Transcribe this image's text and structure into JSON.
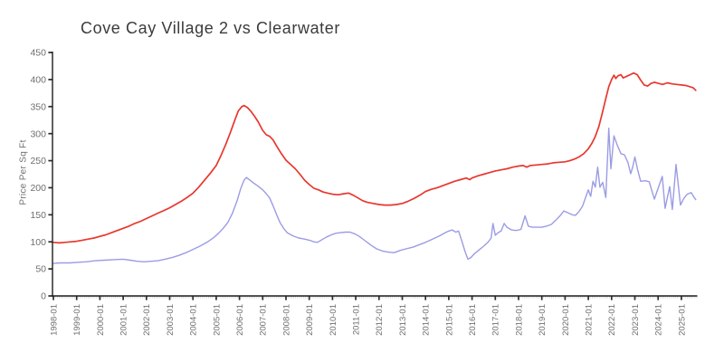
{
  "page": {
    "background": "#ffffff"
  },
  "chart_data": {
    "type": "line",
    "title": "Cove Cay Village 2 vs Clearwater",
    "xlabel": "",
    "ylabel": "Price Per Sq Ft",
    "ylim": [
      0,
      450
    ],
    "xlim": [
      1998.0,
      2025.67
    ],
    "grid": false,
    "legend_position": "none",
    "y_ticks": [
      0,
      50,
      100,
      150,
      200,
      250,
      300,
      350,
      400,
      450
    ],
    "x_tick_years": [
      1998,
      1999,
      2000,
      2001,
      2002,
      2003,
      2004,
      2005,
      2006,
      2007,
      2008,
      2009,
      2010,
      2011,
      2012,
      2013,
      2014,
      2015,
      2016,
      2017,
      2018,
      2019,
      2020,
      2021,
      2022,
      2023,
      2024,
      2025
    ],
    "x_tick_labels": [
      "1998-01",
      "1999-01",
      "2000-01",
      "2001-01",
      "2002-01",
      "2003-01",
      "2004-01",
      "2005-01",
      "2006-01",
      "2007-01",
      "2008-01",
      "2009-01",
      "2010-01",
      "2011-01",
      "2012-01",
      "2013-01",
      "2014-01",
      "2015-01",
      "2016-01",
      "2017-01",
      "2018-01",
      "2019-01",
      "2020-01",
      "2021-01",
      "2022-01",
      "2023-01",
      "2024-01",
      "2025-01"
    ],
    "colors": {
      "red_series": "#e8372e",
      "blue_series": "#9b9ce4",
      "axis": "#1c1c1c",
      "tick_label": "#6f6f6f",
      "minor_tick": "#c4c4c4",
      "title_text": "#3b3b3b"
    },
    "series": [
      {
        "id": "red",
        "name": "Clearwater",
        "color": "#e8372e",
        "points": [
          [
            1998.0,
            99
          ],
          [
            1998.25,
            98
          ],
          [
            1998.5,
            99
          ],
          [
            1998.75,
            100
          ],
          [
            1999.0,
            101
          ],
          [
            1999.25,
            103
          ],
          [
            1999.5,
            105
          ],
          [
            1999.75,
            107
          ],
          [
            2000.0,
            110
          ],
          [
            2000.25,
            113
          ],
          [
            2000.5,
            117
          ],
          [
            2000.75,
            121
          ],
          [
            2001.0,
            125
          ],
          [
            2001.25,
            129
          ],
          [
            2001.5,
            134
          ],
          [
            2001.75,
            138
          ],
          [
            2002.0,
            143
          ],
          [
            2002.25,
            148
          ],
          [
            2002.5,
            153
          ],
          [
            2002.75,
            158
          ],
          [
            2003.0,
            163
          ],
          [
            2003.25,
            169
          ],
          [
            2003.5,
            175
          ],
          [
            2003.75,
            182
          ],
          [
            2004.0,
            190
          ],
          [
            2004.25,
            201
          ],
          [
            2004.5,
            214
          ],
          [
            2004.75,
            227
          ],
          [
            2005.0,
            241
          ],
          [
            2005.2,
            259
          ],
          [
            2005.4,
            279
          ],
          [
            2005.6,
            301
          ],
          [
            2005.8,
            325
          ],
          [
            2005.95,
            342
          ],
          [
            2006.1,
            350
          ],
          [
            2006.2,
            352
          ],
          [
            2006.35,
            348
          ],
          [
            2006.5,
            341
          ],
          [
            2006.65,
            332
          ],
          [
            2006.8,
            322
          ],
          [
            2007.0,
            306
          ],
          [
            2007.15,
            298
          ],
          [
            2007.3,
            295
          ],
          [
            2007.45,
            288
          ],
          [
            2007.6,
            277
          ],
          [
            2007.8,
            263
          ],
          [
            2008.0,
            251
          ],
          [
            2008.2,
            243
          ],
          [
            2008.4,
            235
          ],
          [
            2008.6,
            225
          ],
          [
            2008.8,
            214
          ],
          [
            2009.0,
            206
          ],
          [
            2009.2,
            199
          ],
          [
            2009.4,
            196
          ],
          [
            2009.6,
            192
          ],
          [
            2009.8,
            190
          ],
          [
            2010.0,
            188
          ],
          [
            2010.25,
            187
          ],
          [
            2010.5,
            189
          ],
          [
            2010.7,
            190
          ],
          [
            2010.9,
            186
          ],
          [
            2011.1,
            181
          ],
          [
            2011.3,
            176
          ],
          [
            2011.5,
            173
          ],
          [
            2011.75,
            171
          ],
          [
            2012.0,
            169
          ],
          [
            2012.25,
            168
          ],
          [
            2012.5,
            168
          ],
          [
            2012.75,
            169
          ],
          [
            2013.0,
            171
          ],
          [
            2013.25,
            175
          ],
          [
            2013.5,
            180
          ],
          [
            2013.75,
            186
          ],
          [
            2014.0,
            193
          ],
          [
            2014.25,
            197
          ],
          [
            2014.5,
            200
          ],
          [
            2014.75,
            204
          ],
          [
            2015.0,
            208
          ],
          [
            2015.25,
            212
          ],
          [
            2015.5,
            215
          ],
          [
            2015.75,
            218
          ],
          [
            2015.9,
            215
          ],
          [
            2016.0,
            218
          ],
          [
            2016.25,
            222
          ],
          [
            2016.5,
            225
          ],
          [
            2016.75,
            228
          ],
          [
            2017.0,
            231
          ],
          [
            2017.25,
            233
          ],
          [
            2017.5,
            235
          ],
          [
            2017.75,
            238
          ],
          [
            2018.0,
            240
          ],
          [
            2018.2,
            241
          ],
          [
            2018.35,
            238
          ],
          [
            2018.5,
            241
          ],
          [
            2018.75,
            242
          ],
          [
            2019.0,
            243
          ],
          [
            2019.25,
            244
          ],
          [
            2019.5,
            246
          ],
          [
            2019.75,
            247
          ],
          [
            2020.0,
            248
          ],
          [
            2020.2,
            250
          ],
          [
            2020.4,
            253
          ],
          [
            2020.6,
            257
          ],
          [
            2020.8,
            263
          ],
          [
            2021.0,
            272
          ],
          [
            2021.15,
            282
          ],
          [
            2021.3,
            295
          ],
          [
            2021.45,
            313
          ],
          [
            2021.6,
            338
          ],
          [
            2021.75,
            365
          ],
          [
            2021.88,
            387
          ],
          [
            2022.0,
            400
          ],
          [
            2022.1,
            408
          ],
          [
            2022.18,
            402
          ],
          [
            2022.28,
            407
          ],
          [
            2022.4,
            409
          ],
          [
            2022.5,
            403
          ],
          [
            2022.65,
            406
          ],
          [
            2022.8,
            409
          ],
          [
            2022.95,
            412
          ],
          [
            2023.1,
            409
          ],
          [
            2023.25,
            399
          ],
          [
            2023.4,
            390
          ],
          [
            2023.55,
            388
          ],
          [
            2023.7,
            393
          ],
          [
            2023.85,
            395
          ],
          [
            2024.0,
            393
          ],
          [
            2024.2,
            391
          ],
          [
            2024.4,
            394
          ],
          [
            2024.6,
            392
          ],
          [
            2024.8,
            391
          ],
          [
            2025.0,
            390
          ],
          [
            2025.2,
            389
          ],
          [
            2025.35,
            387
          ],
          [
            2025.5,
            385
          ],
          [
            2025.62,
            380
          ]
        ]
      },
      {
        "id": "blue",
        "name": "Cove Cay Village 2",
        "color": "#9b9ce4",
        "points": [
          [
            1998.0,
            60
          ],
          [
            1998.3,
            61
          ],
          [
            1998.7,
            61
          ],
          [
            1999.0,
            62
          ],
          [
            1999.4,
            63
          ],
          [
            1999.8,
            65
          ],
          [
            2000.2,
            66
          ],
          [
            2000.6,
            67
          ],
          [
            2001.0,
            68
          ],
          [
            2001.3,
            66
          ],
          [
            2001.6,
            64
          ],
          [
            2001.9,
            63
          ],
          [
            2002.2,
            64
          ],
          [
            2002.5,
            65
          ],
          [
            2002.8,
            68
          ],
          [
            2003.1,
            71
          ],
          [
            2003.4,
            75
          ],
          [
            2003.7,
            80
          ],
          [
            2004.0,
            86
          ],
          [
            2004.3,
            92
          ],
          [
            2004.6,
            99
          ],
          [
            2004.9,
            108
          ],
          [
            2005.1,
            116
          ],
          [
            2005.3,
            125
          ],
          [
            2005.5,
            136
          ],
          [
            2005.7,
            153
          ],
          [
            2005.9,
            176
          ],
          [
            2006.05,
            198
          ],
          [
            2006.2,
            214
          ],
          [
            2006.3,
            219
          ],
          [
            2006.45,
            214
          ],
          [
            2006.6,
            209
          ],
          [
            2006.8,
            203
          ],
          [
            2007.0,
            196
          ],
          [
            2007.15,
            189
          ],
          [
            2007.3,
            181
          ],
          [
            2007.45,
            166
          ],
          [
            2007.6,
            150
          ],
          [
            2007.75,
            135
          ],
          [
            2007.9,
            125
          ],
          [
            2008.05,
            117
          ],
          [
            2008.3,
            111
          ],
          [
            2008.55,
            107
          ],
          [
            2008.8,
            105
          ],
          [
            2009.0,
            103
          ],
          [
            2009.2,
            100
          ],
          [
            2009.35,
            99
          ],
          [
            2009.55,
            104
          ],
          [
            2009.75,
            109
          ],
          [
            2009.95,
            113
          ],
          [
            2010.15,
            116
          ],
          [
            2010.35,
            117
          ],
          [
            2010.55,
            118
          ],
          [
            2010.75,
            118
          ],
          [
            2010.95,
            115
          ],
          [
            2011.15,
            110
          ],
          [
            2011.4,
            102
          ],
          [
            2011.65,
            94
          ],
          [
            2011.9,
            87
          ],
          [
            2012.15,
            83
          ],
          [
            2012.4,
            81
          ],
          [
            2012.65,
            80
          ],
          [
            2012.9,
            84
          ],
          [
            2013.15,
            87
          ],
          [
            2013.45,
            90
          ],
          [
            2013.75,
            95
          ],
          [
            2014.0,
            99
          ],
          [
            2014.3,
            105
          ],
          [
            2014.6,
            111
          ],
          [
            2014.85,
            117
          ],
          [
            2015.0,
            120
          ],
          [
            2015.15,
            122
          ],
          [
            2015.3,
            118
          ],
          [
            2015.42,
            120
          ],
          [
            2015.55,
            103
          ],
          [
            2015.7,
            82
          ],
          [
            2015.82,
            68
          ],
          [
            2015.95,
            71
          ],
          [
            2016.1,
            78
          ],
          [
            2016.3,
            85
          ],
          [
            2016.5,
            92
          ],
          [
            2016.7,
            100
          ],
          [
            2016.82,
            107
          ],
          [
            2016.9,
            134
          ],
          [
            2017.0,
            112
          ],
          [
            2017.12,
            117
          ],
          [
            2017.25,
            120
          ],
          [
            2017.38,
            134
          ],
          [
            2017.5,
            127
          ],
          [
            2017.7,
            122
          ],
          [
            2017.9,
            121
          ],
          [
            2018.1,
            123
          ],
          [
            2018.28,
            148
          ],
          [
            2018.42,
            129
          ],
          [
            2018.6,
            127
          ],
          [
            2018.8,
            127
          ],
          [
            2019.0,
            127
          ],
          [
            2019.2,
            129
          ],
          [
            2019.4,
            132
          ],
          [
            2019.6,
            140
          ],
          [
            2019.8,
            149
          ],
          [
            2019.95,
            157
          ],
          [
            2020.1,
            154
          ],
          [
            2020.3,
            150
          ],
          [
            2020.45,
            149
          ],
          [
            2020.6,
            156
          ],
          [
            2020.75,
            166
          ],
          [
            2020.9,
            184
          ],
          [
            2021.0,
            196
          ],
          [
            2021.1,
            184
          ],
          [
            2021.2,
            212
          ],
          [
            2021.3,
            201
          ],
          [
            2021.4,
            238
          ],
          [
            2021.5,
            201
          ],
          [
            2021.62,
            210
          ],
          [
            2021.75,
            182
          ],
          [
            2021.88,
            310
          ],
          [
            2021.97,
            235
          ],
          [
            2022.1,
            296
          ],
          [
            2022.25,
            278
          ],
          [
            2022.4,
            263
          ],
          [
            2022.55,
            261
          ],
          [
            2022.7,
            247
          ],
          [
            2022.82,
            226
          ],
          [
            2022.92,
            240
          ],
          [
            2023.0,
            257
          ],
          [
            2023.12,
            233
          ],
          [
            2023.25,
            212
          ],
          [
            2023.45,
            213
          ],
          [
            2023.62,
            211
          ],
          [
            2023.72,
            196
          ],
          [
            2023.84,
            179
          ],
          [
            2024.0,
            199
          ],
          [
            2024.18,
            221
          ],
          [
            2024.3,
            162
          ],
          [
            2024.5,
            202
          ],
          [
            2024.61,
            160
          ],
          [
            2024.77,
            243
          ],
          [
            2024.96,
            168
          ],
          [
            2025.1,
            180
          ],
          [
            2025.25,
            188
          ],
          [
            2025.42,
            191
          ],
          [
            2025.55,
            182
          ],
          [
            2025.62,
            178
          ]
        ]
      }
    ]
  }
}
